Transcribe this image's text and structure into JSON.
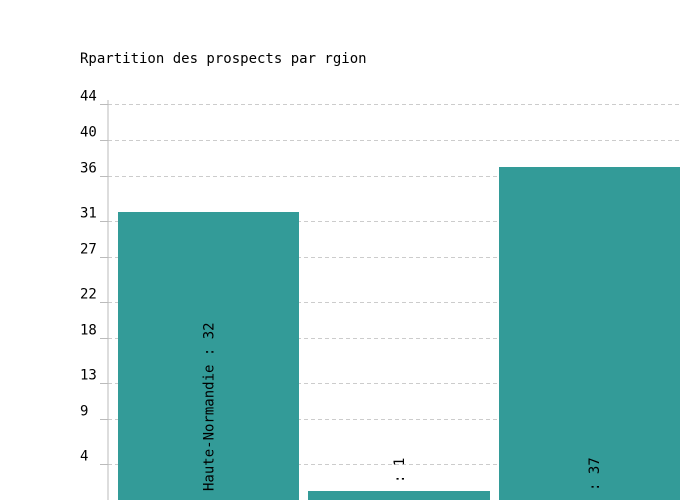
{
  "chart_data": {
    "type": "bar",
    "title": "Rpartition des prospects par rgion",
    "categories": [
      "Haute-Normandie",
      "",
      ""
    ],
    "values": [
      32,
      1,
      37
    ],
    "bar_labels": [
      "Haute-Normandie : 32",
      ": 1",
      ": 37"
    ],
    "y_ticks": [
      4,
      9,
      13,
      18,
      22,
      27,
      31,
      36,
      40,
      44
    ],
    "ylim": [
      0,
      44.6
    ],
    "xlabel": "",
    "ylabel": "",
    "grid": true,
    "legend": "none",
    "colors": {
      "bar": "#339b98",
      "grid": "#cccccc",
      "axis": "#bbbbbb",
      "text": "#000000"
    }
  }
}
